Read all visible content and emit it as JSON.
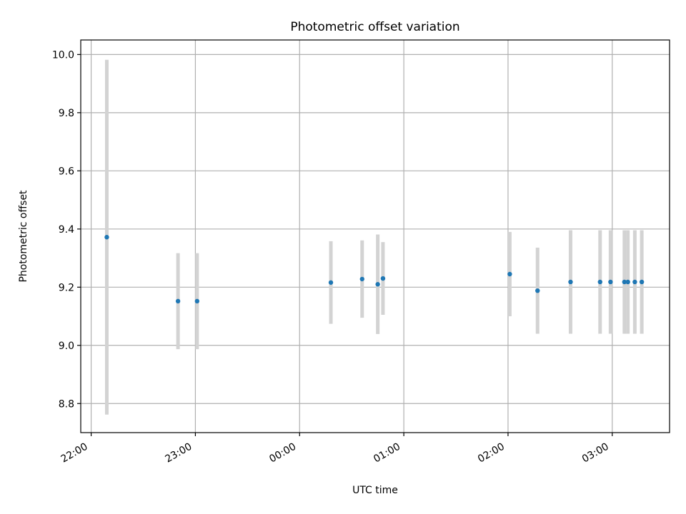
{
  "chart_data": {
    "type": "scatter",
    "title": "Photometric offset variation",
    "xlabel": "UTC time",
    "ylabel": "Photometric offset",
    "x_tick_labels": [
      "22:00",
      "23:00",
      "00:00",
      "01:00",
      "02:00",
      "03:00"
    ],
    "x_ticks_hours": [
      0,
      1,
      2,
      3,
      4,
      5
    ],
    "xlim_hours": [
      -0.1,
      5.55
    ],
    "ylim": [
      8.7,
      10.05
    ],
    "y_ticks": [
      8.8,
      9.0,
      9.2,
      9.4,
      9.6,
      9.8,
      10.0
    ],
    "y_tick_labels": [
      "8.8",
      "9.0",
      "9.2",
      "9.4",
      "9.6",
      "9.8",
      "10.0"
    ],
    "grid": true,
    "point_color": "#1f77b4",
    "errorbar_color": "#d3d3d3",
    "points": [
      {
        "time": "22:09",
        "y": 9.372,
        "err": 0.61
      },
      {
        "time": "22:50",
        "y": 9.152,
        "err": 0.165
      },
      {
        "time": "23:01",
        "y": 9.152,
        "err": 0.165
      },
      {
        "time": "00:18",
        "y": 9.216,
        "err": 0.142
      },
      {
        "time": "00:36",
        "y": 9.228,
        "err": 0.133
      },
      {
        "time": "00:45",
        "y": 9.21,
        "err": 0.171
      },
      {
        "time": "00:48",
        "y": 9.23,
        "err": 0.125
      },
      {
        "time": "02:01",
        "y": 9.245,
        "err": 0.145
      },
      {
        "time": "02:17",
        "y": 9.188,
        "err": 0.148
      },
      {
        "time": "02:36",
        "y": 9.218,
        "err": 0.178
      },
      {
        "time": "02:53",
        "y": 9.218,
        "err": 0.178
      },
      {
        "time": "02:59",
        "y": 9.218,
        "err": 0.178
      },
      {
        "time": "03:07",
        "y": 9.218,
        "err": 0.178
      },
      {
        "time": "03:09",
        "y": 9.218,
        "err": 0.178
      },
      {
        "time": "03:13",
        "y": 9.218,
        "err": 0.178
      },
      {
        "time": "03:17",
        "y": 9.218,
        "err": 0.178
      }
    ]
  }
}
